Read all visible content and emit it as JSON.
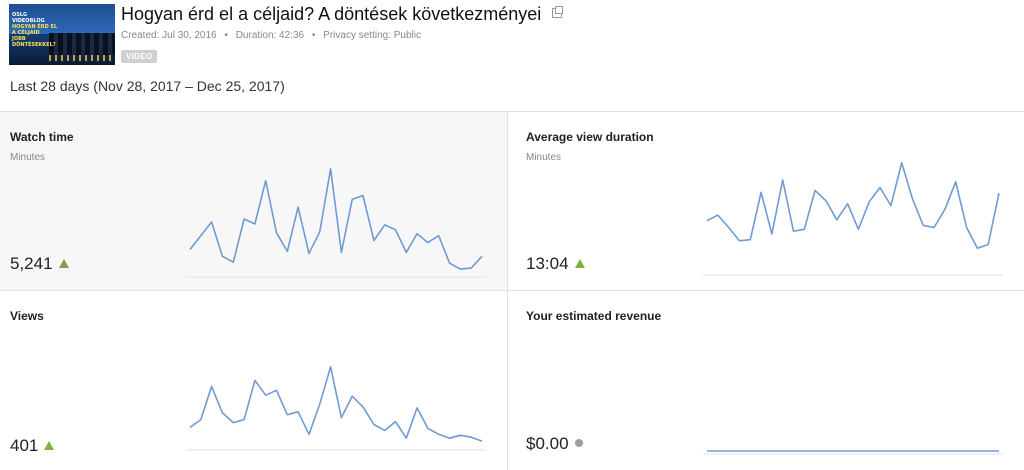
{
  "header": {
    "title": "Hogyan érd el a céljaid? A döntések következményei",
    "thumbnail_text": {
      "line1": "OSLG",
      "line2": "VIDEOBLOG",
      "line3": "HOGYAN ÉRD EL",
      "line4": "A CÉLJAID",
      "line5": "JOBB",
      "line6": "DÖNTÉSEKKEL?"
    },
    "created": "Created: Jul 30, 2016",
    "duration": "Duration: 42:36",
    "privacy": "Privacy setting: Public",
    "separator": "•",
    "badge": "VIDEO",
    "date_range": "Last 28 days (Nov 28, 2017 – Dec 25, 2017)"
  },
  "cards": {
    "watch_time": {
      "title": "Watch time",
      "subtitle": "Minutes",
      "value": "5,241",
      "trend": "up",
      "sparkline": [
        25,
        39,
        53,
        18,
        12,
        56,
        51,
        95,
        42,
        23,
        68,
        21,
        43,
        107,
        22,
        76,
        80,
        34,
        50,
        45,
        22,
        41,
        32,
        39,
        11,
        5,
        6,
        18
      ]
    },
    "avg_view_duration": {
      "title": "Average view duration",
      "subtitle": "Minutes",
      "value": "13:04",
      "trend": "up",
      "sparkline": [
        54,
        60,
        47,
        33,
        34,
        84,
        40,
        97,
        43,
        45,
        86,
        75,
        55,
        72,
        45,
        74,
        89,
        70,
        115,
        77,
        49,
        47,
        66,
        95,
        47,
        25,
        29,
        83
      ]
    },
    "views": {
      "title": "Views",
      "subtitle": "",
      "value": "401",
      "trend": "up",
      "sparkline": [
        20,
        28,
        62,
        35,
        25,
        28,
        68,
        53,
        58,
        33,
        36,
        13,
        44,
        82,
        30,
        52,
        41,
        23,
        17,
        26,
        9,
        40,
        19,
        13,
        9,
        12,
        10,
        6
      ]
    },
    "revenue": {
      "title": "Your estimated revenue",
      "subtitle": "",
      "value": "$0.00",
      "trend": "neutral",
      "sparkline": [
        0,
        0,
        0,
        0,
        0,
        0,
        0,
        0,
        0,
        0,
        0,
        0,
        0,
        0,
        0,
        0,
        0,
        0,
        0,
        0,
        0,
        0,
        0,
        0,
        0,
        0,
        0,
        0
      ]
    }
  },
  "colors": {
    "line": "#6f9bd2",
    "baseline": "#e0e0e0",
    "trend_up": "#7cb342",
    "neutral": "#9e9e9e"
  }
}
